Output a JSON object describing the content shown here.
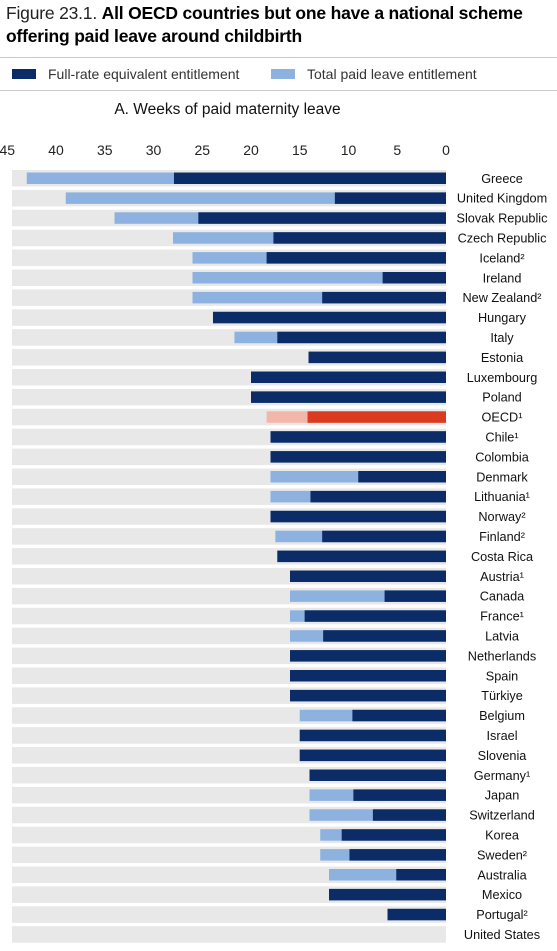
{
  "figure": {
    "number": "Figure 23.1.",
    "title": "All OECD countries but one have a national scheme offering paid leave around childbirth"
  },
  "colors": {
    "full_rate": "#0b2c66",
    "total": "#8eb2df",
    "oecd_full_rate": "#db3b21",
    "oecd_total": "#f3b7aa",
    "band": "#e8e8e8"
  },
  "chart_data": {
    "type": "bar",
    "orientation": "horizontal",
    "title": "A. Weeks of paid maternity leave",
    "xlabel": "",
    "ylabel": "",
    "x_reversed": true,
    "xlim": [
      0,
      45
    ],
    "xticks": [
      45,
      40,
      35,
      30,
      25,
      20,
      15,
      10,
      5,
      0
    ],
    "grid": false,
    "legend_position": "top",
    "highlight": "OECD¹",
    "categories": [
      "Greece",
      "United Kingdom",
      "Slovak Republic",
      "Czech Republic",
      "Iceland²",
      "Ireland",
      "New Zealand²",
      "Hungary",
      "Italy",
      "Estonia",
      "Luxembourg",
      "Poland",
      "OECD¹",
      "Chile¹",
      "Colombia",
      "Denmark",
      "Lithuania¹",
      "Norway²",
      "Finland²",
      "Costa Rica",
      "Austria¹",
      "Canada",
      "France¹",
      "Latvia",
      "Netherlands",
      "Spain",
      "Türkiye",
      "Belgium",
      "Israel",
      "Slovenia",
      "Germany¹",
      "Japan",
      "Switzerland",
      "Korea",
      "Sweden²",
      "Australia",
      "Mexico",
      "Portugal²",
      "United States"
    ],
    "series": [
      {
        "name": "Full-rate equivalent entitlement",
        "values": [
          27.9,
          11.4,
          25.4,
          17.7,
          18.4,
          6.5,
          12.7,
          23.9,
          17.3,
          14.1,
          20.0,
          20.0,
          14.2,
          18.0,
          18.0,
          9.0,
          13.9,
          18.0,
          12.7,
          17.3,
          16.0,
          6.3,
          14.5,
          12.6,
          16.0,
          16.0,
          16.0,
          9.6,
          15.0,
          15.0,
          14.0,
          9.5,
          7.5,
          10.7,
          9.9,
          5.1,
          12.0,
          6.0,
          0.0
        ]
      },
      {
        "name": "Total paid leave entitlement",
        "values": [
          43.0,
          39.0,
          34.0,
          28.0,
          26.0,
          26.0,
          26.0,
          23.9,
          21.7,
          14.1,
          20.0,
          20.0,
          18.4,
          18.0,
          18.0,
          18.0,
          18.0,
          18.0,
          17.5,
          17.3,
          16.0,
          16.0,
          16.0,
          16.0,
          16.0,
          16.0,
          16.0,
          15.0,
          15.0,
          15.0,
          14.0,
          14.0,
          14.0,
          12.9,
          12.9,
          12.0,
          12.0,
          6.0,
          0.0
        ]
      }
    ]
  }
}
